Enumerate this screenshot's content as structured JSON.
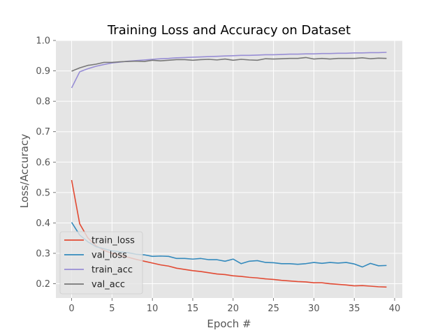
{
  "chart_data": {
    "type": "line",
    "title": "Training Loss and Accuracy on Dataset",
    "xlabel": "Epoch #",
    "ylabel": "Loss/Accuracy",
    "xlim": [
      -1.95,
      40.95
    ],
    "ylim": [
      0.153,
      1.0
    ],
    "xticks": [
      0,
      5,
      10,
      15,
      20,
      25,
      30,
      35,
      40
    ],
    "yticks": [
      0.2,
      0.3,
      0.4,
      0.5,
      0.6,
      0.7,
      0.8,
      0.9,
      1.0
    ],
    "xtick_labels": [
      "0",
      "5",
      "10",
      "15",
      "20",
      "25",
      "30",
      "35",
      "40"
    ],
    "ytick_labels": [
      "0.2",
      "0.3",
      "0.4",
      "0.5",
      "0.6",
      "0.7",
      "0.8",
      "0.9",
      "1.0"
    ],
    "grid": true,
    "legend_position": "lower-left",
    "style": "ggplot",
    "x": [
      0,
      1,
      2,
      3,
      4,
      5,
      6,
      7,
      8,
      9,
      10,
      11,
      12,
      13,
      14,
      15,
      16,
      17,
      18,
      19,
      20,
      21,
      22,
      23,
      24,
      25,
      26,
      27,
      28,
      29,
      30,
      31,
      32,
      33,
      34,
      35,
      36,
      37,
      38,
      39
    ],
    "series": [
      {
        "name": "train_loss",
        "color": "#E24A33",
        "values": [
          0.541,
          0.397,
          0.351,
          0.325,
          0.31,
          0.3,
          0.293,
          0.287,
          0.28,
          0.274,
          0.268,
          0.262,
          0.258,
          0.251,
          0.247,
          0.243,
          0.24,
          0.236,
          0.232,
          0.23,
          0.226,
          0.224,
          0.221,
          0.219,
          0.216,
          0.214,
          0.211,
          0.209,
          0.207,
          0.206,
          0.203,
          0.203,
          0.2,
          0.198,
          0.196,
          0.193,
          0.194,
          0.192,
          0.19,
          0.189
        ]
      },
      {
        "name": "val_loss",
        "color": "#348ABD",
        "values": [
          0.402,
          0.36,
          0.338,
          0.322,
          0.315,
          0.308,
          0.305,
          0.302,
          0.297,
          0.295,
          0.29,
          0.291,
          0.29,
          0.283,
          0.283,
          0.281,
          0.283,
          0.279,
          0.279,
          0.274,
          0.281,
          0.266,
          0.274,
          0.276,
          0.27,
          0.269,
          0.266,
          0.266,
          0.264,
          0.266,
          0.27,
          0.267,
          0.27,
          0.268,
          0.27,
          0.265,
          0.255,
          0.267,
          0.259,
          0.26
        ]
      },
      {
        "name": "train_acc",
        "color": "#988ED5",
        "values": [
          0.844,
          0.897,
          0.907,
          0.915,
          0.921,
          0.926,
          0.929,
          0.932,
          0.934,
          0.936,
          0.938,
          0.94,
          0.941,
          0.943,
          0.944,
          0.945,
          0.946,
          0.947,
          0.948,
          0.949,
          0.95,
          0.951,
          0.951,
          0.952,
          0.953,
          0.953,
          0.954,
          0.955,
          0.955,
          0.956,
          0.956,
          0.957,
          0.957,
          0.958,
          0.958,
          0.959,
          0.959,
          0.96,
          0.96,
          0.961
        ]
      },
      {
        "name": "val_acc",
        "color": "#777777",
        "values": [
          0.899,
          0.91,
          0.918,
          0.922,
          0.928,
          0.928,
          0.93,
          0.931,
          0.932,
          0.931,
          0.935,
          0.933,
          0.935,
          0.937,
          0.937,
          0.935,
          0.937,
          0.938,
          0.936,
          0.939,
          0.935,
          0.938,
          0.936,
          0.935,
          0.94,
          0.939,
          0.94,
          0.941,
          0.941,
          0.944,
          0.939,
          0.941,
          0.939,
          0.941,
          0.941,
          0.941,
          0.943,
          0.94,
          0.942,
          0.941
        ]
      }
    ]
  }
}
